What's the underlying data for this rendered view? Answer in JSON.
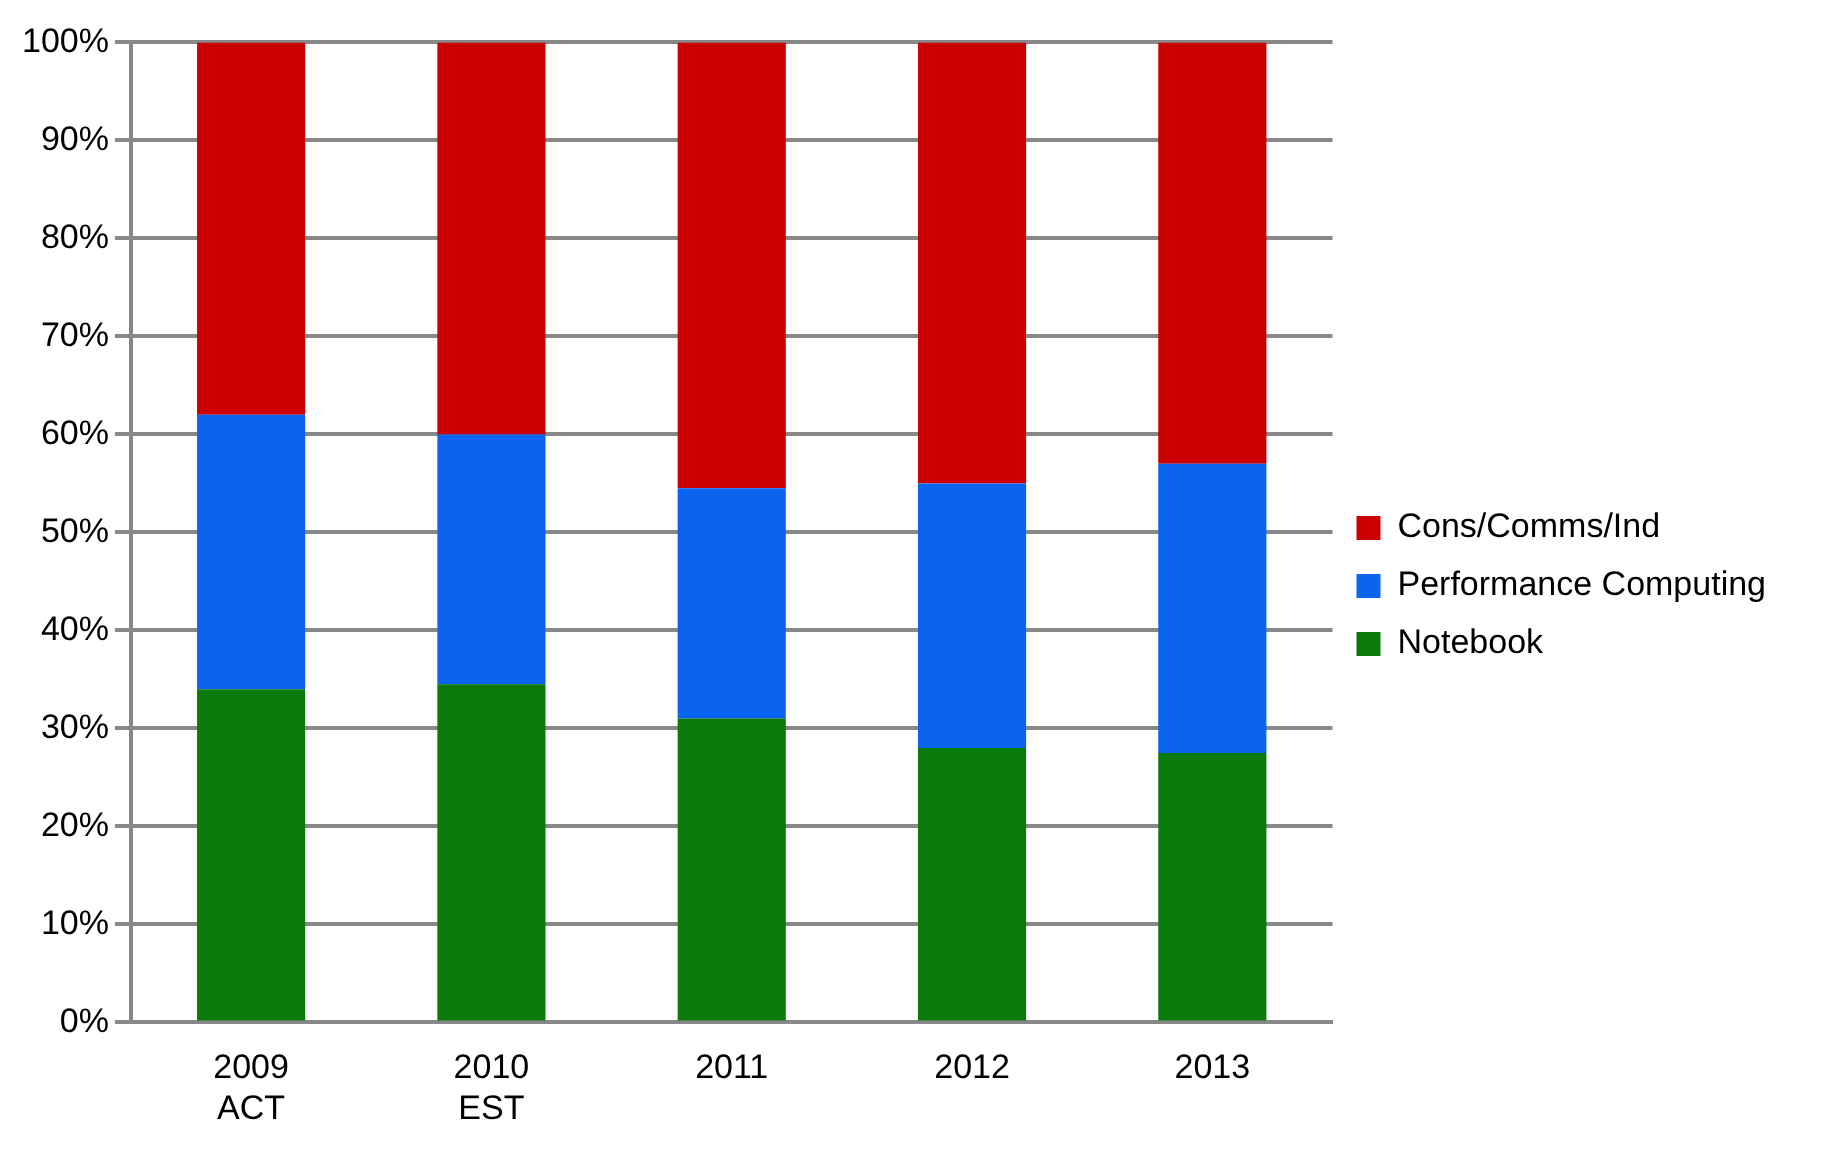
{
  "chart_data": {
    "type": "bar",
    "stacked": true,
    "categories": [
      "2009 ACT",
      "2010 EST",
      "2011",
      "2012",
      "2013"
    ],
    "series": [
      {
        "name": "Notebook",
        "color": "#0a7a0a",
        "values": [
          34,
          34.5,
          31,
          28,
          27.5
        ]
      },
      {
        "name": "Performance Computing",
        "color": "#0a64f0",
        "values": [
          28,
          25.5,
          23.5,
          27,
          29.5
        ]
      },
      {
        "name": "Cons/Comms/Ind",
        "color": "#cc0000",
        "values": [
          38,
          40,
          45.5,
          45,
          43
        ]
      }
    ],
    "ylim": [
      0,
      100
    ],
    "yticks": [
      {
        "value": 0,
        "label": "0%"
      },
      {
        "value": 10,
        "label": "10%"
      },
      {
        "value": 20,
        "label": "20%"
      },
      {
        "value": 30,
        "label": "30%"
      },
      {
        "value": 40,
        "label": "40%"
      },
      {
        "value": 50,
        "label": "50%"
      },
      {
        "value": 60,
        "label": "60%"
      },
      {
        "value": 70,
        "label": "70%"
      },
      {
        "value": 80,
        "label": "80%"
      },
      {
        "value": 90,
        "label": "90%"
      },
      {
        "value": 100,
        "label": "100%"
      }
    ],
    "grid": "y",
    "legend": "right"
  }
}
